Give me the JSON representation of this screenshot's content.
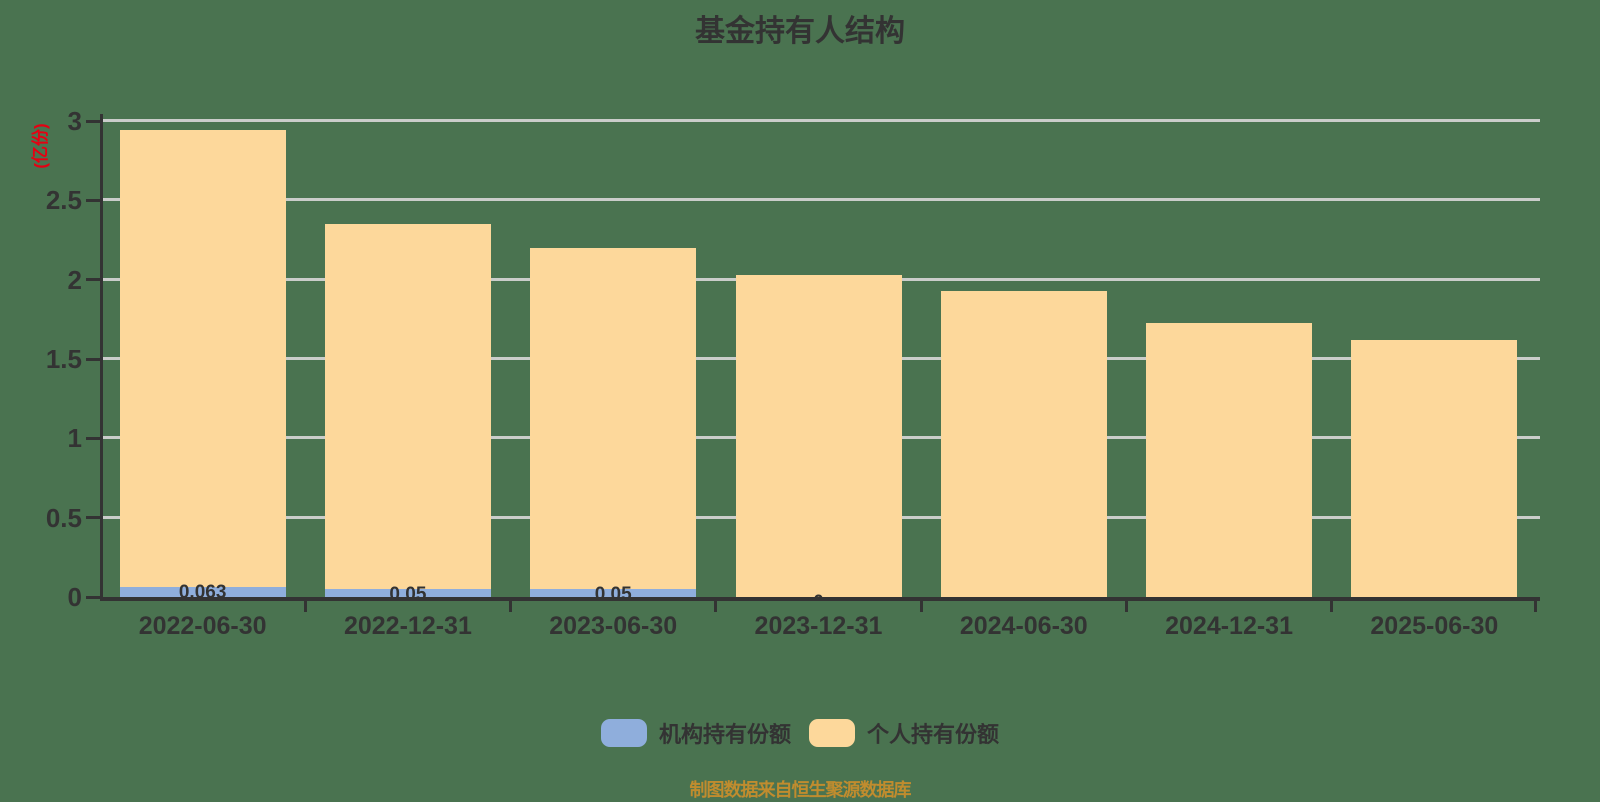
{
  "title": "基金持有人结构",
  "y_axis_unit": "(亿份)",
  "caption": "制图数据来自恒生聚源数据库",
  "colors": {
    "background": "#4A7350",
    "institutional": "#8FAEDC",
    "individual": "#FDD89B",
    "grid": "#CACDCA",
    "axis": "#333333",
    "unit_label": "#E60012",
    "caption": "#C08C2E"
  },
  "legend": {
    "items": [
      {
        "label": "机构持有份额",
        "color": "#8FAEDC"
      },
      {
        "label": "个人持有份额",
        "color": "#FDD89B"
      }
    ]
  },
  "chart_data": {
    "type": "bar",
    "stacked": true,
    "title": "基金持有人结构",
    "ylabel": "(亿份)",
    "xlabel": "",
    "ylim": [
      0,
      3
    ],
    "yticks": [
      0,
      0.5,
      1,
      1.5,
      2,
      2.5,
      3
    ],
    "ytick_labels": [
      "0",
      "0.5",
      "1",
      "1.5",
      "2",
      "2.5",
      "3"
    ],
    "grid": true,
    "legend_position": "bottom",
    "categories": [
      "2022-06-30",
      "2022-12-31",
      "2023-06-30",
      "2023-12-31",
      "2024-06-30",
      "2024-12-31",
      "2025-06-30"
    ],
    "series": [
      {
        "name": "机构持有份额",
        "color": "#8FAEDC",
        "values": [
          0.063,
          0.05,
          0.05,
          0,
          0,
          0,
          0
        ]
      },
      {
        "name": "个人持有份额",
        "color": "#FDD89B",
        "values": [
          2.88,
          2.3,
          2.15,
          2.03,
          1.93,
          1.73,
          1.62
        ]
      }
    ],
    "bar_labels": [
      "0.063",
      "0.05",
      "0.05",
      "0",
      "",
      "",
      ""
    ]
  }
}
